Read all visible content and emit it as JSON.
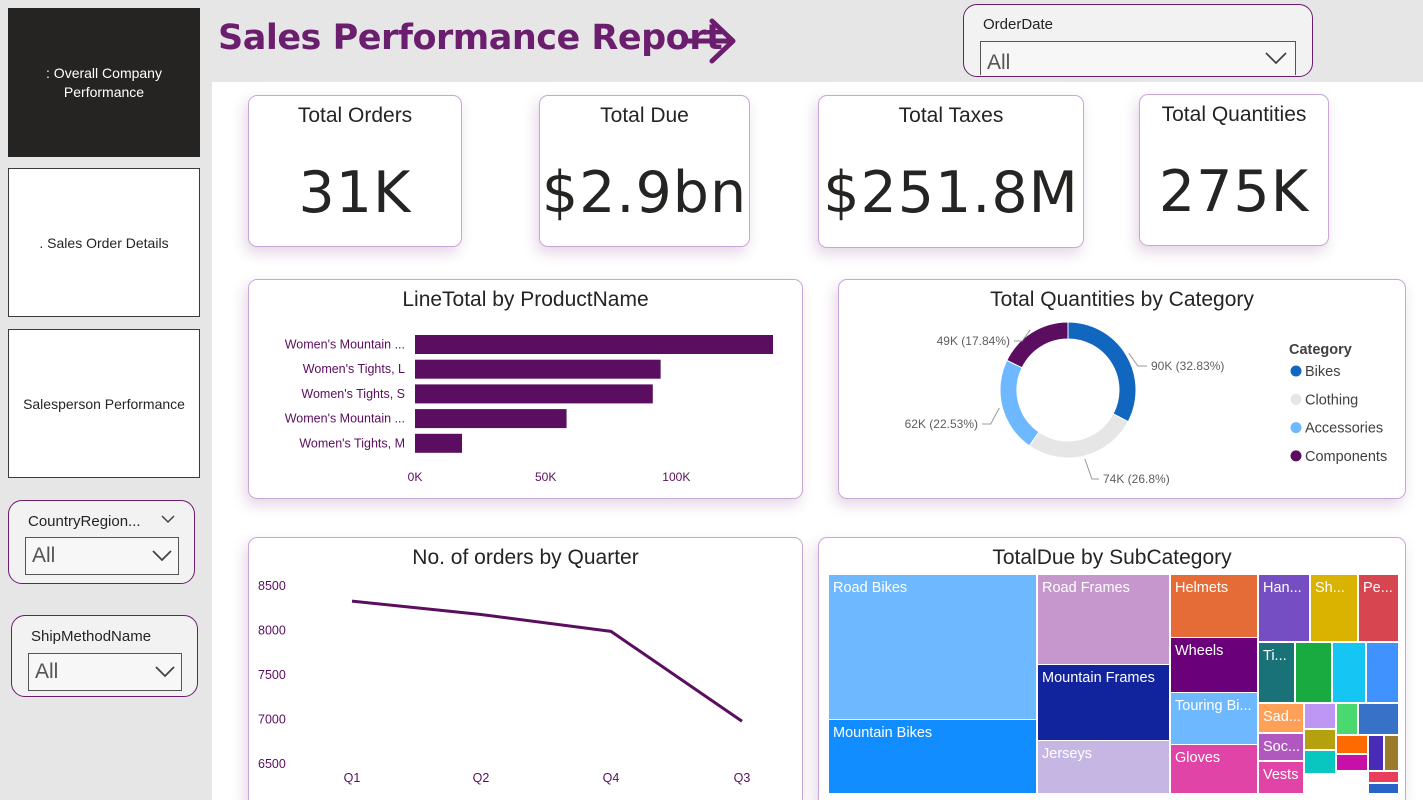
{
  "header": {
    "title": "Sales Performance Report"
  },
  "nav": [
    {
      "label": ": Overall Company Performance",
      "active": true
    },
    {
      "label": ". Sales Order Details",
      "active": false
    },
    {
      "label": "Salesperson Performance",
      "active": false
    }
  ],
  "filters": {
    "order_date": {
      "title": "OrderDate",
      "value": "All"
    },
    "country_region": {
      "title": "CountryRegion...",
      "value": "All"
    },
    "ship_method": {
      "title": "ShipMethodName",
      "value": "All"
    }
  },
  "kpis": [
    {
      "title": "Total Orders",
      "value": "31K"
    },
    {
      "title": "Total Due",
      "value": "$2.9bn"
    },
    {
      "title": "Total Taxes",
      "value": "$251.8M"
    },
    {
      "title": "Total Quantities",
      "value": "275K"
    }
  ],
  "colors": {
    "brand": "#6b1d6e",
    "bar": "#5b0d5f",
    "line": "#5b0d5f"
  },
  "chart_data": [
    {
      "type": "bar",
      "orientation": "horizontal",
      "title": "LineTotal by ProductName",
      "categories": [
        "Women's Mountain ...",
        "Women's Tights, L",
        "Women's Tights, S",
        "Women's Mountain ...",
        "Women's Tights, M"
      ],
      "values": [
        137000,
        94000,
        91000,
        58000,
        18000
      ],
      "xticks": [
        "0K",
        "50K",
        "100K"
      ],
      "xtick_values": [
        0,
        50000,
        100000
      ],
      "xlim": [
        0,
        137000
      ]
    },
    {
      "type": "pie",
      "donut": true,
      "title": "Total Quantities by Category",
      "legend_title": "Category",
      "legend_position": "right",
      "slices": [
        {
          "name": "Bikes",
          "value": 90000,
          "label": "90K (32.83%)",
          "color": "#1166c0"
        },
        {
          "name": "Clothing",
          "value": 74000,
          "label": "74K (26.8%)",
          "color": "#e6e6e6"
        },
        {
          "name": "Accessories",
          "value": 62000,
          "label": "62K (22.53%)",
          "color": "#6db8ff"
        },
        {
          "name": "Components",
          "value": 49000,
          "label": "49K (17.84%)",
          "color": "#5b0d5f"
        }
      ]
    },
    {
      "type": "line",
      "title": "No. of orders by Quarter",
      "categories": [
        "Q1",
        "Q2",
        "Q4",
        "Q3"
      ],
      "values": [
        8330,
        8180,
        7990,
        6980
      ],
      "yticks": [
        8500,
        8000,
        7500,
        7000,
        6500
      ],
      "ylim": [
        6500,
        8500
      ]
    },
    {
      "type": "treemap",
      "title": "TotalDue by SubCategory",
      "cells": [
        {
          "label": "Road Bikes",
          "color": "#6db8ff"
        },
        {
          "label": "Mountain Bikes",
          "color": "#118dff"
        },
        {
          "label": "Road Frames",
          "color": "#c597cc"
        },
        {
          "label": "Mountain Frames",
          "color": "#12239e"
        },
        {
          "label": "Jerseys",
          "color": "#c5b6e3"
        },
        {
          "label": "Helmets",
          "color": "#e66c37"
        },
        {
          "label": "Wheels",
          "color": "#6b007b"
        },
        {
          "label": "Touring Bi...",
          "color": "#6db8ff"
        },
        {
          "label": "Gloves",
          "color": "#e044a7"
        },
        {
          "label": "Han...",
          "color": "#744ec2"
        },
        {
          "label": "Sh...",
          "color": "#d9b300"
        },
        {
          "label": "Pe...",
          "color": "#d64550"
        },
        {
          "label": "Ti...",
          "color": "#197278"
        },
        {
          "label": "",
          "color": "#1aab40"
        },
        {
          "label": "",
          "color": "#15c6f4"
        },
        {
          "label": "",
          "color": "#4092ff"
        },
        {
          "label": "Sad...",
          "color": "#ffa058"
        },
        {
          "label": "",
          "color": "#be97f5"
        },
        {
          "label": "",
          "color": "#4ad96e"
        },
        {
          "label": "",
          "color": "#3871c8"
        },
        {
          "label": "Soc...",
          "color": "#b158c0"
        },
        {
          "label": "",
          "color": "#b5a10f"
        },
        {
          "label": "",
          "color": "#ff6a00"
        },
        {
          "label": "",
          "color": "#4a2bb8"
        },
        {
          "label": "",
          "color": "#9a7b2e"
        },
        {
          "label": "Vests",
          "color": "#e044a7"
        },
        {
          "label": "",
          "color": "#08c6c0"
        },
        {
          "label": "",
          "color": "#c80fa7"
        },
        {
          "label": "",
          "color": "#e83e5c"
        },
        {
          "label": "",
          "color": "#2864c8"
        }
      ]
    }
  ]
}
